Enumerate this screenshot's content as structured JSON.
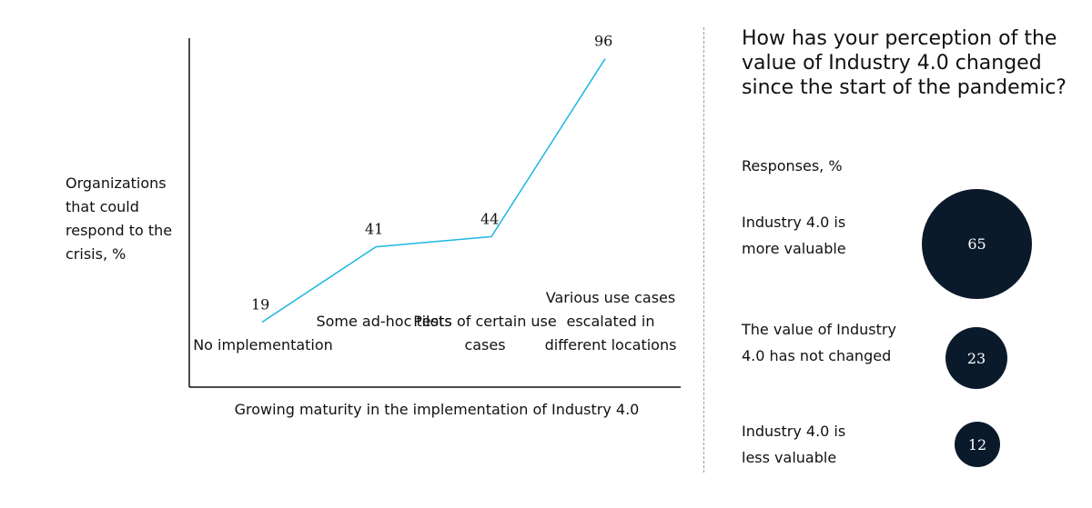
{
  "chart_data": [
    {
      "type": "line",
      "ylabel": "Organizations that could respond to the crisis, %",
      "xlabel": "Growing maturity in the implementation of Industry 4.0",
      "categories": [
        "No implementation",
        "Some ad-hoc tests",
        "Pilots of certain use cases",
        "Various use cases escalated in different locations"
      ],
      "values": [
        19,
        41,
        44,
        96
      ],
      "series_color": "#1fb6e0"
    },
    {
      "type": "bubble",
      "title": "How has your perception of the value of Industry 4.0 changed since the start of the pandemic?",
      "subtitle": "Responses, %",
      "categories": [
        "Industry 4.0 is more valuable",
        "The value of Industry 4.0 has not changed",
        "Industry 4.0 is less valuable"
      ],
      "values": [
        65,
        23,
        12
      ],
      "bubble_color": "#0b1a2a"
    }
  ]
}
